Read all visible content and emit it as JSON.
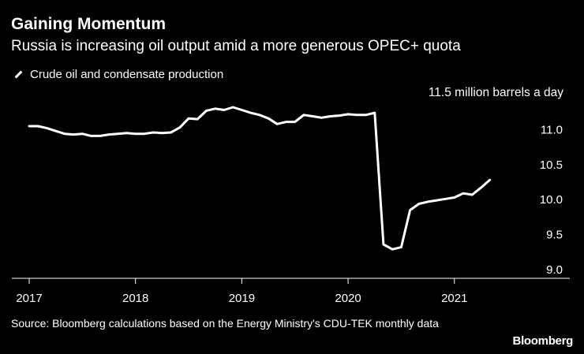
{
  "header": {
    "title": "Gaining Momentum",
    "subtitle": "Russia is increasing oil output amid a more generous OPEC+ quota"
  },
  "legend": {
    "series_label": "Crude oil and condensate production"
  },
  "footer": {
    "source": "Source: Bloomberg calculations based on the Energy Ministry's CDU-TEK monthly data",
    "brand": "Bloomberg"
  },
  "colors": {
    "background": "#000000",
    "line": "#ffffff",
    "text": "#ffffff"
  },
  "chart_data": {
    "type": "line",
    "title": "Gaining Momentum",
    "subtitle": "Russia is increasing oil output amid a more generous OPEC+ quota",
    "unit_label": "11.5 million barrels a day",
    "ylabel": "million barrels a day",
    "xlabel": "",
    "ylim": [
      9.0,
      11.5
    ],
    "xlim": [
      2017.0,
      2021.9
    ],
    "y_ticks": [
      {
        "value": 9.0,
        "label": "9.0"
      },
      {
        "value": 9.5,
        "label": "9.5"
      },
      {
        "value": 10.0,
        "label": "10.0"
      },
      {
        "value": 10.5,
        "label": "10.5"
      },
      {
        "value": 11.0,
        "label": "11.0"
      }
    ],
    "x_ticks": [
      {
        "value": 2017,
        "label": "2017"
      },
      {
        "value": 2018,
        "label": "2018"
      },
      {
        "value": 2019,
        "label": "2019"
      },
      {
        "value": 2020,
        "label": "2020"
      },
      {
        "value": 2021,
        "label": "2021"
      }
    ],
    "legend_position": "top-left",
    "grid": false,
    "series": [
      {
        "name": "Crude oil and condensate production",
        "x": [
          2017.0,
          2017.083,
          2017.167,
          2017.25,
          2017.333,
          2017.417,
          2017.5,
          2017.583,
          2017.667,
          2017.75,
          2017.833,
          2017.917,
          2018.0,
          2018.083,
          2018.167,
          2018.25,
          2018.333,
          2018.417,
          2018.5,
          2018.583,
          2018.667,
          2018.75,
          2018.833,
          2018.917,
          2019.0,
          2019.083,
          2019.167,
          2019.25,
          2019.333,
          2019.417,
          2019.5,
          2019.583,
          2019.667,
          2019.75,
          2019.833,
          2019.917,
          2020.0,
          2020.083,
          2020.167,
          2020.25,
          2020.333,
          2020.417,
          2020.5,
          2020.583,
          2020.667,
          2020.75,
          2020.833,
          2020.917,
          2021.0,
          2021.083,
          2021.167,
          2021.25,
          2021.333
        ],
        "values": [
          11.05,
          11.05,
          11.02,
          10.98,
          10.94,
          10.93,
          10.94,
          10.91,
          10.91,
          10.93,
          10.94,
          10.95,
          10.94,
          10.94,
          10.96,
          10.95,
          10.96,
          11.03,
          11.16,
          11.15,
          11.27,
          11.3,
          11.28,
          11.32,
          11.28,
          11.24,
          11.21,
          11.16,
          11.08,
          11.11,
          11.11,
          11.21,
          11.19,
          11.17,
          11.19,
          11.2,
          11.22,
          11.21,
          11.21,
          11.24,
          9.36,
          9.29,
          9.32,
          9.85,
          9.94,
          9.97,
          9.99,
          10.01,
          10.03,
          10.09,
          10.07,
          10.17,
          10.28
        ]
      }
    ]
  }
}
